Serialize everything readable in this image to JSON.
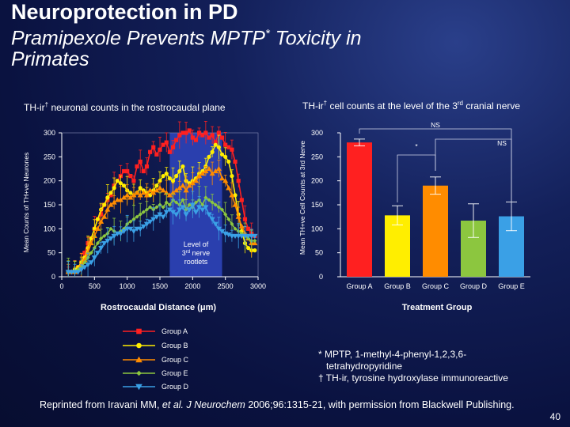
{
  "slide": {
    "title_line1": "Neuroprotection in PD",
    "title_line2_pre": "Pramipexole Prevents MPTP",
    "title_line2_sup": "*",
    "title_line2_post": " Toxicity in",
    "title_line3": "Primates",
    "page_number": "40"
  },
  "left_panel": {
    "title_pre": "TH-ir",
    "title_sup": "†",
    "title_post": " neuronal counts in the rostrocaudal plane"
  },
  "right_panel": {
    "title_pre": "TH-ir",
    "title_sup": "†",
    "title_mid": " cell counts at the level of the 3",
    "title_sup2": "rd",
    "title_post": " cranial nerve"
  },
  "footnotes": {
    "line1": "* MPTP, 1-methyl-4-phenyl-1,2,3,6-",
    "line2": "tetrahydropyridine",
    "line3": "† TH-ir, tyrosine hydroxylase immunoreactive"
  },
  "citation": {
    "pre": "Reprinted from Iravani MM, ",
    "italic": "et al. J Neurochem",
    "post": " 2006;96:1315-21, with permission from Blackwell Publishing."
  },
  "chart_data": [
    {
      "type": "line",
      "xlabel": "Rostrocaudal Distance (μm)",
      "ylabel": "Mean Counts of TH+ve Neurones",
      "xlim": [
        0,
        3000
      ],
      "ylim": [
        0,
        300
      ],
      "xticks": [
        0,
        500,
        1000,
        1500,
        2000,
        2500,
        3000
      ],
      "yticks": [
        0,
        50,
        100,
        150,
        200,
        250,
        300
      ],
      "band": {
        "x": [
          1650,
          2450
        ],
        "label_line1": "Level of",
        "label_line2_pre": "3",
        "label_line2_sup": "rd",
        "label_line2_post": " nerve",
        "label_line3": "rootlets",
        "color": "#2a3fae"
      },
      "legend_placement": "bottom-left",
      "x": [
        100,
        150,
        200,
        250,
        300,
        350,
        400,
        450,
        500,
        550,
        600,
        650,
        700,
        750,
        800,
        850,
        900,
        950,
        1000,
        1050,
        1100,
        1150,
        1200,
        1250,
        1300,
        1350,
        1400,
        1450,
        1500,
        1550,
        1600,
        1650,
        1700,
        1750,
        1800,
        1850,
        1900,
        1950,
        2000,
        2050,
        2100,
        2150,
        2200,
        2250,
        2300,
        2350,
        2400,
        2450,
        2500,
        2550,
        2600,
        2650,
        2700,
        2750,
        2800,
        2850,
        2900,
        2950
      ],
      "series": [
        {
          "name": "Group A",
          "color": "#ff2020",
          "marker": "square",
          "values": [
            10,
            10,
            10,
            20,
            30,
            50,
            70,
            80,
            100,
            120,
            130,
            150,
            160,
            170,
            190,
            200,
            210,
            220,
            220,
            210,
            200,
            230,
            240,
            220,
            230,
            260,
            270,
            255,
            265,
            275,
            280,
            260,
            270,
            285,
            295,
            300,
            300,
            305,
            290,
            285,
            300,
            295,
            300,
            290,
            295,
            280,
            300,
            290,
            275,
            270,
            265,
            240,
            200,
            160,
            120,
            100,
            90,
            85
          ]
        },
        {
          "name": "Group B",
          "color": "#ffee00",
          "marker": "circle",
          "values": [
            10,
            10,
            15,
            20,
            30,
            40,
            60,
            80,
            100,
            120,
            140,
            150,
            165,
            175,
            185,
            200,
            195,
            190,
            180,
            175,
            170,
            175,
            185,
            180,
            175,
            170,
            180,
            190,
            200,
            210,
            215,
            205,
            200,
            210,
            220,
            230,
            200,
            195,
            200,
            205,
            215,
            220,
            230,
            250,
            260,
            275,
            270,
            255,
            250,
            240,
            210,
            170,
            130,
            95,
            70,
            60,
            55,
            55
          ]
        },
        {
          "name": "Group C",
          "color": "#ff8c00",
          "marker": "triangle-up",
          "values": [
            10,
            10,
            10,
            15,
            25,
            35,
            50,
            70,
            85,
            100,
            115,
            125,
            140,
            150,
            155,
            160,
            160,
            165,
            170,
            165,
            170,
            175,
            170,
            175,
            170,
            180,
            175,
            180,
            185,
            180,
            175,
            170,
            175,
            180,
            185,
            190,
            180,
            190,
            195,
            200,
            210,
            215,
            220,
            225,
            215,
            220,
            225,
            205,
            200,
            185,
            170,
            150,
            125,
            105,
            90,
            80,
            70,
            70
          ]
        },
        {
          "name": "Group E",
          "color": "#8cc63f",
          "marker": "diamond",
          "values": [
            10,
            10,
            10,
            15,
            20,
            30,
            40,
            50,
            60,
            70,
            80,
            85,
            90,
            100,
            95,
            90,
            95,
            100,
            110,
            115,
            120,
            125,
            130,
            135,
            140,
            145,
            140,
            145,
            150,
            145,
            155,
            150,
            160,
            155,
            150,
            160,
            140,
            150,
            145,
            155,
            160,
            150,
            165,
            160,
            155,
            150,
            145,
            140,
            130,
            120,
            110,
            100,
            95,
            90,
            85,
            80,
            75,
            75
          ]
        },
        {
          "name": "Group D",
          "color": "#3aa0e6",
          "marker": "triangle-down",
          "values": [
            10,
            10,
            10,
            10,
            15,
            20,
            25,
            30,
            40,
            50,
            60,
            70,
            75,
            80,
            85,
            90,
            90,
            95,
            100,
            100,
            95,
            100,
            100,
            105,
            110,
            115,
            120,
            125,
            130,
            125,
            135,
            140,
            135,
            130,
            140,
            145,
            130,
            140,
            150,
            135,
            145,
            140,
            145,
            130,
            120,
            110,
            100,
            95,
            90,
            88,
            85,
            85,
            85,
            85,
            85,
            85,
            85,
            85
          ]
        }
      ]
    },
    {
      "type": "bar",
      "xlabel": "Treatment Group",
      "ylabel": "Mean TH+ve Cell Counts at 3rd Nerve",
      "ylim": [
        0,
        300
      ],
      "yticks": [
        0,
        50,
        100,
        150,
        200,
        250,
        300
      ],
      "categories": [
        "Group A",
        "Group B",
        "Group C",
        "Group D",
        "Group E"
      ],
      "values": [
        280,
        128,
        190,
        117,
        126
      ],
      "errors": [
        7,
        20,
        18,
        35,
        30
      ],
      "colors": [
        "#ff2020",
        "#ffee00",
        "#ff8c00",
        "#8cc63f",
        "#3aa0e6"
      ],
      "annotations": [
        {
          "text": "NS",
          "from": 0,
          "to": 4
        },
        {
          "text": "NS",
          "from": 2,
          "to": 4
        },
        {
          "text": "*",
          "from": 1,
          "to": 2
        }
      ]
    }
  ]
}
